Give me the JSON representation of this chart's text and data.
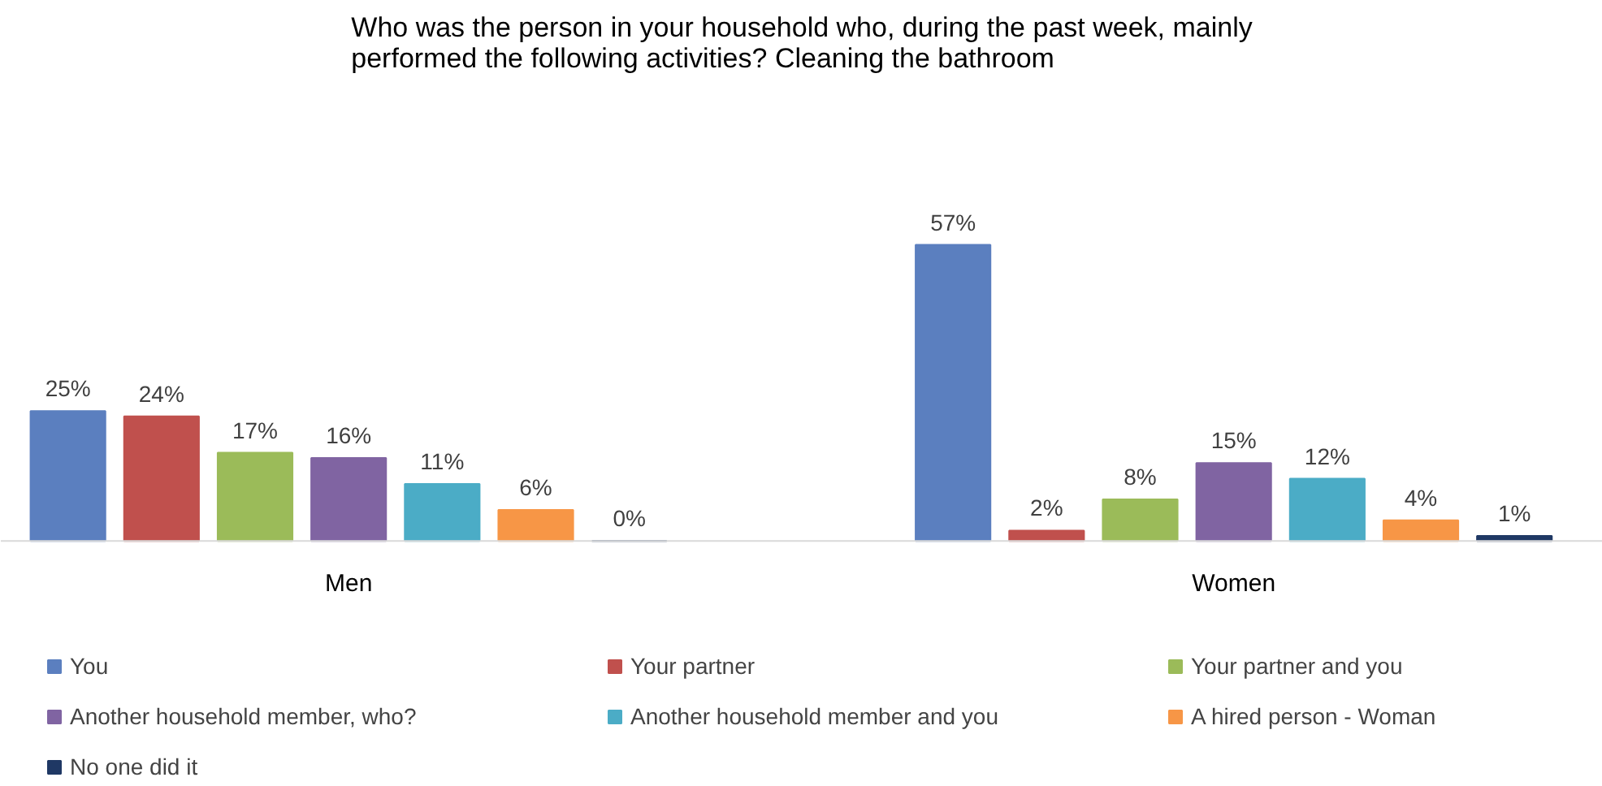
{
  "chart_data": {
    "type": "bar",
    "title": "Who was the person in your household who, during the past week, mainly\nperformed the following activities? Cleaning the bathroom",
    "categories": [
      "Men",
      "Women"
    ],
    "legend": "bottom",
    "series": [
      {
        "name": "You",
        "color": "#5b7fbf",
        "values": [
          25,
          57
        ],
        "value_labels": [
          "25%",
          "57%"
        ]
      },
      {
        "name": "Your partner",
        "color": "#c0504d",
        "values": [
          24,
          2
        ],
        "value_labels": [
          "24%",
          "2%"
        ]
      },
      {
        "name": "Your partner and you",
        "color": "#9bbb59",
        "values": [
          17,
          8
        ],
        "value_labels": [
          "17%",
          "8%"
        ]
      },
      {
        "name": "Another household member, who?",
        "color": "#8064a2",
        "values": [
          16,
          15
        ],
        "value_labels": [
          "16%",
          "15%"
        ]
      },
      {
        "name": "Another household member and you",
        "color": "#4bacc6",
        "values": [
          11,
          12
        ],
        "value_labels": [
          "11%",
          "12%"
        ]
      },
      {
        "name": "A hired person - Woman",
        "color": "#f79646",
        "values": [
          6,
          4
        ],
        "value_labels": [
          "6%",
          "4%"
        ]
      },
      {
        "name": "No one did it",
        "color": "#1f3864",
        "values": [
          0,
          1
        ],
        "value_labels": [
          "0%",
          "1%"
        ]
      }
    ]
  }
}
